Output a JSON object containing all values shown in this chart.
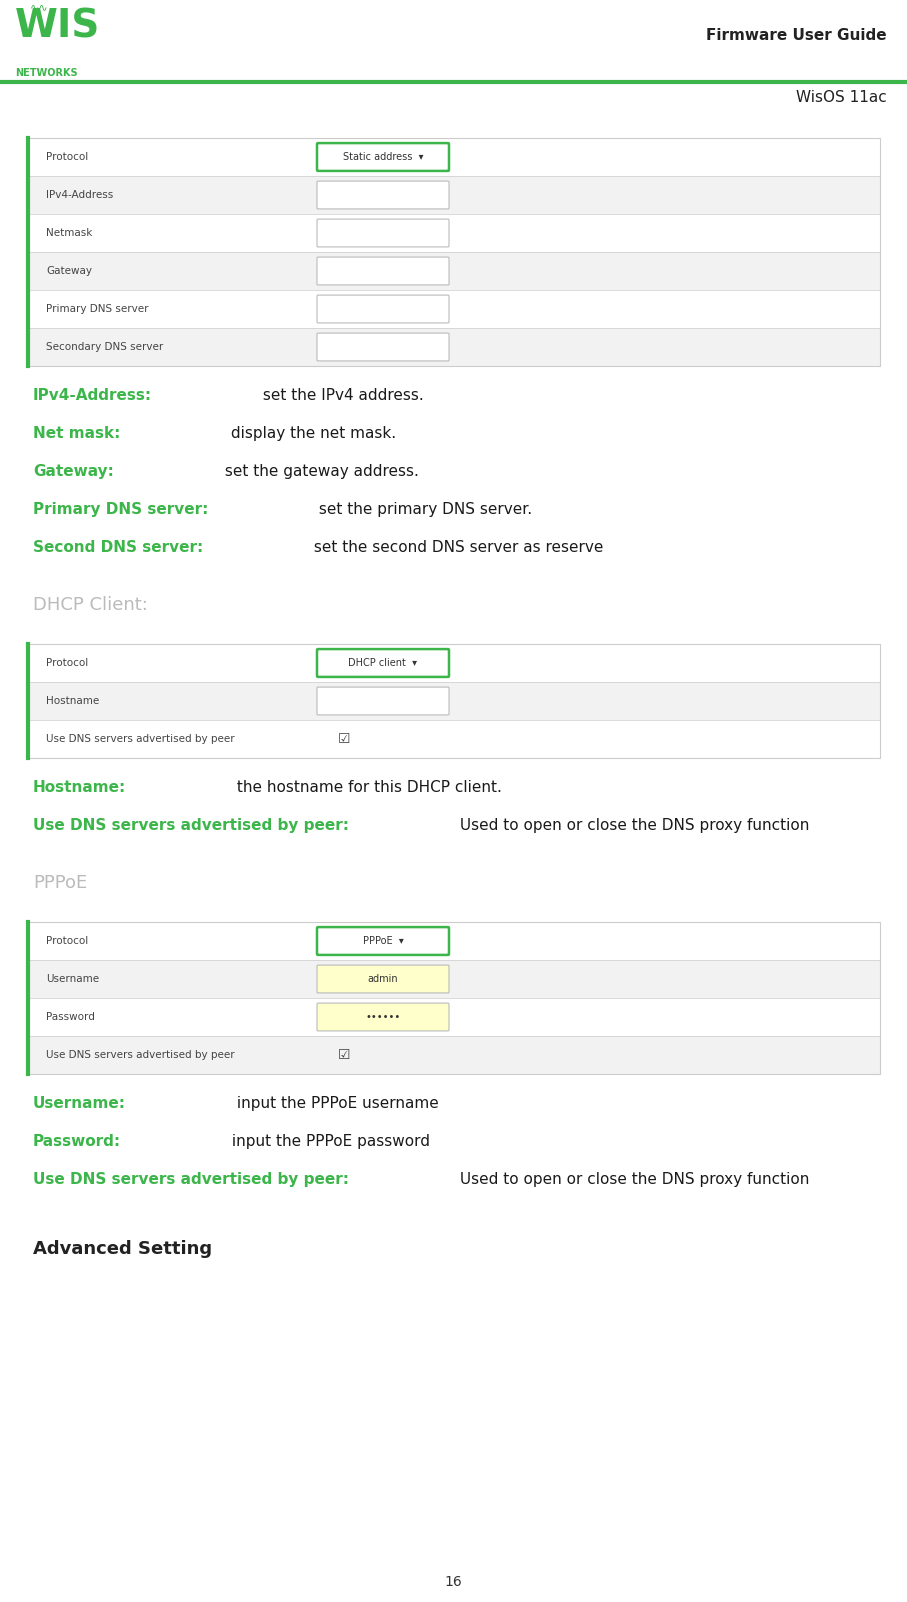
{
  "page_width": 9.07,
  "page_height": 16.02,
  "bg_color": "#ffffff",
  "green_color": "#3cb54a",
  "dark_text": "#1a1a1a",
  "gray_text": "#999999",
  "table_border_color": "#cccccc",
  "input_border": "#bbbbbb",
  "green_border": "#3cb54a",
  "page_number": "16",
  "title_right": "Firmware User Guide",
  "subtitle_right": "WisOS 11ac",
  "section1_rows": [
    {
      "label": "Protocol",
      "value": "Static address  ▾",
      "bg": "#ffffff",
      "green_border": true,
      "checkbox": false,
      "yellow": false
    },
    {
      "label": "IPv4-Address",
      "value": "",
      "bg": "#f2f2f2",
      "green_border": false,
      "checkbox": false,
      "yellow": false
    },
    {
      "label": "Netmask",
      "value": "",
      "bg": "#ffffff",
      "green_border": false,
      "checkbox": false,
      "yellow": false
    },
    {
      "label": "Gateway",
      "value": "",
      "bg": "#f2f2f2",
      "green_border": false,
      "checkbox": false,
      "yellow": false
    },
    {
      "label": "Primary DNS server",
      "value": "",
      "bg": "#ffffff",
      "green_border": false,
      "checkbox": false,
      "yellow": false
    },
    {
      "label": "Secondary DNS server",
      "value": "",
      "bg": "#f2f2f2",
      "green_border": false,
      "checkbox": false,
      "yellow": false
    }
  ],
  "bullets1": [
    {
      "bold": "IPv4-Address:",
      "normal": " set the IPv4 address."
    },
    {
      "bold": "Net mask:",
      "normal": " display the net mask."
    },
    {
      "bold": "Gateway:",
      "normal": " set the gateway address."
    },
    {
      "bold": "Primary DNS server:",
      "normal": " set the primary DNS server."
    },
    {
      "bold": "Second DNS server:",
      "normal": " set the second DNS server as reserve"
    }
  ],
  "dhcp_label": "DHCP Client:",
  "section2_rows": [
    {
      "label": "Protocol",
      "value": "DHCP client  ▾",
      "bg": "#ffffff",
      "green_border": true,
      "checkbox": false,
      "yellow": false
    },
    {
      "label": "Hostname",
      "value": "",
      "bg": "#f2f2f2",
      "green_border": false,
      "checkbox": false,
      "yellow": false
    },
    {
      "label": "Use DNS servers advertised by peer",
      "value": "☑",
      "bg": "#ffffff",
      "green_border": false,
      "checkbox": true,
      "yellow": false
    }
  ],
  "bullets2": [
    {
      "bold": "Hostname:",
      "normal": " the hostname for this DHCP client."
    },
    {
      "bold": "Use DNS servers advertised by peer:",
      "normal": " Used to open or close the DNS proxy function"
    }
  ],
  "pppoe_label": "PPPoE",
  "section3_rows": [
    {
      "label": "Protocol",
      "value": "PPPoE  ▾",
      "bg": "#ffffff",
      "green_border": true,
      "checkbox": false,
      "yellow": false
    },
    {
      "label": "Username",
      "value": "admin",
      "bg": "#f2f2f2",
      "green_border": false,
      "checkbox": false,
      "yellow": true
    },
    {
      "label": "Password",
      "value": "••••••",
      "bg": "#ffffff",
      "green_border": false,
      "checkbox": false,
      "yellow": true
    },
    {
      "label": "Use DNS servers advertised by peer",
      "value": "☑",
      "bg": "#f2f2f2",
      "green_border": false,
      "checkbox": true,
      "yellow": false
    }
  ],
  "bullets3": [
    {
      "bold": "Username:",
      "normal": " input the PPPoE username"
    },
    {
      "bold": "Password:",
      "normal": " input the PPPoE password"
    },
    {
      "bold": "Use DNS servers advertised by peer:",
      "normal": " Used to open or close the DNS proxy function"
    }
  ],
  "advanced_label": "Advanced Setting"
}
